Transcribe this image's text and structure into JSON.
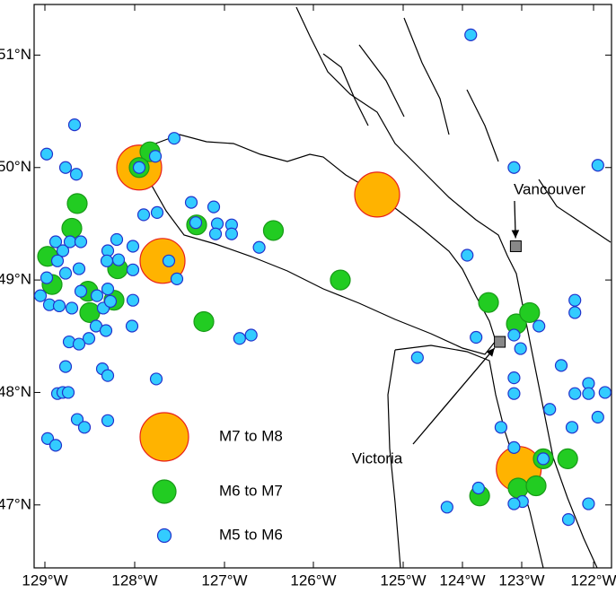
{
  "chart_data": {
    "type": "scatter",
    "xlim": [
      -129.12,
      -121.75
    ],
    "ylim": [
      46.44,
      51.45
    ],
    "xticks": [
      {
        "value": -129,
        "label": "129°W"
      },
      {
        "value": -128,
        "label": "128°W"
      },
      {
        "value": -127,
        "label": "127°W"
      },
      {
        "value": -126,
        "label": "126°W"
      },
      {
        "value": -125,
        "label": "125°W"
      },
      {
        "value": -124,
        "label": "124°W"
      },
      {
        "value": -123,
        "label": "123°W"
      },
      {
        "value": -122,
        "label": "122°W"
      }
    ],
    "yticks": [
      {
        "value": 47,
        "label": "47°N"
      },
      {
        "value": 48,
        "label": "48°N"
      },
      {
        "value": 49,
        "label": "49°N"
      },
      {
        "value": 50,
        "label": "50°N"
      },
      {
        "value": 51,
        "label": "51°N"
      }
    ],
    "series": [
      {
        "name": "M7 to M8",
        "color": "#ffb300",
        "edge": "#e8201a",
        "x": [
          -127.95,
          -127.69,
          -125.29,
          -123.05
        ],
        "y": [
          50.0,
          49.17,
          49.76,
          47.32
        ]
      },
      {
        "name": "M6 to M7",
        "color": "#22cc22",
        "edge": "#189a18",
        "x": [
          -127.83,
          -127.95,
          -128.64,
          -128.7,
          -128.97,
          -128.19,
          -128.92,
          -128.52,
          -128.5,
          -128.23,
          -127.31,
          -126.45,
          -125.7,
          -127.23,
          -123.56,
          -123.09,
          -122.89,
          -122.7,
          -122.36,
          -123.71,
          -123.06,
          -122.8
        ],
        "y": [
          50.14,
          50.0,
          49.68,
          49.46,
          49.21,
          49.1,
          48.96,
          48.9,
          48.71,
          48.82,
          49.49,
          49.44,
          49.0,
          48.63,
          48.8,
          48.61,
          48.71,
          47.41,
          47.41,
          47.08,
          47.15,
          47.17
        ]
      },
      {
        "name": "M5 to M6",
        "color": "#33ccff",
        "edge": "#2233cc",
        "x": [
          -123.86,
          -128.98,
          -128.67,
          -128.77,
          -128.65,
          -127.56,
          -127.95,
          -127.77,
          -127.9,
          -127.75,
          -127.37,
          -127.32,
          -127.12,
          -127.08,
          -127.1,
          -126.92,
          -126.92,
          -126.61,
          -127.62,
          -127.53,
          -128.2,
          -128.3,
          -128.02,
          -128.02,
          -128.31,
          -128.88,
          -128.8,
          -128.72,
          -128.6,
          -128.86,
          -128.77,
          -128.62,
          -128.98,
          -129.05,
          -128.95,
          -128.84,
          -128.7,
          -128.6,
          -128.42,
          -128.35,
          -128.3,
          -128.27,
          -128.43,
          -128.51,
          -128.32,
          -128.73,
          -128.62,
          -128.03,
          -128.02,
          -128.77,
          -128.36,
          -128.3,
          -127.76,
          -128.86,
          -128.8,
          -128.74,
          -128.64,
          -128.56,
          -128.3,
          -128.97,
          -128.88,
          -126.83,
          -126.7,
          -124.76,
          -123.92,
          -123.77,
          -123.13,
          -123.13,
          -123.02,
          -122.76,
          -123.13,
          -123.13,
          -122.61,
          -122.45,
          -122.26,
          -122.26,
          -122.26,
          -122.07,
          -122.07,
          -121.94,
          -121.84,
          -122.3,
          -121.94,
          -123.35,
          -123.13,
          -122.7,
          -123.73,
          -122.99,
          -123.13,
          -124.26,
          -122.35,
          -122.07,
          -128.18
        ],
        "y": [
          51.18,
          50.12,
          50.38,
          50.0,
          49.94,
          50.26,
          50.0,
          50.1,
          49.58,
          49.6,
          49.69,
          49.51,
          49.65,
          49.5,
          49.41,
          49.49,
          49.41,
          49.29,
          49.17,
          49.01,
          49.36,
          49.26,
          49.09,
          49.3,
          49.17,
          49.34,
          49.26,
          49.34,
          49.34,
          49.17,
          49.06,
          49.1,
          49.02,
          48.86,
          48.78,
          48.77,
          48.75,
          48.9,
          48.86,
          48.75,
          48.92,
          48.81,
          48.59,
          48.48,
          48.55,
          48.45,
          48.43,
          48.59,
          48.82,
          48.23,
          48.21,
          48.15,
          48.12,
          47.99,
          48.0,
          48.0,
          47.76,
          47.69,
          47.75,
          47.59,
          47.53,
          48.48,
          48.51,
          48.31,
          49.22,
          48.49,
          50.0,
          48.51,
          48.39,
          48.59,
          48.13,
          47.99,
          47.85,
          48.24,
          48.82,
          48.71,
          47.99,
          48.08,
          47.99,
          47.78,
          48.0,
          47.69,
          50.02,
          47.69,
          47.51,
          47.41,
          47.15,
          47.03,
          47.01,
          46.98,
          46.87,
          47.01,
          49.18
        ]
      }
    ],
    "cities": [
      {
        "name": "Vancouver",
        "x": -123.1,
        "y": 49.3
      },
      {
        "name": "Victoria",
        "x": -123.37,
        "y": 48.45
      }
    ]
  }
}
